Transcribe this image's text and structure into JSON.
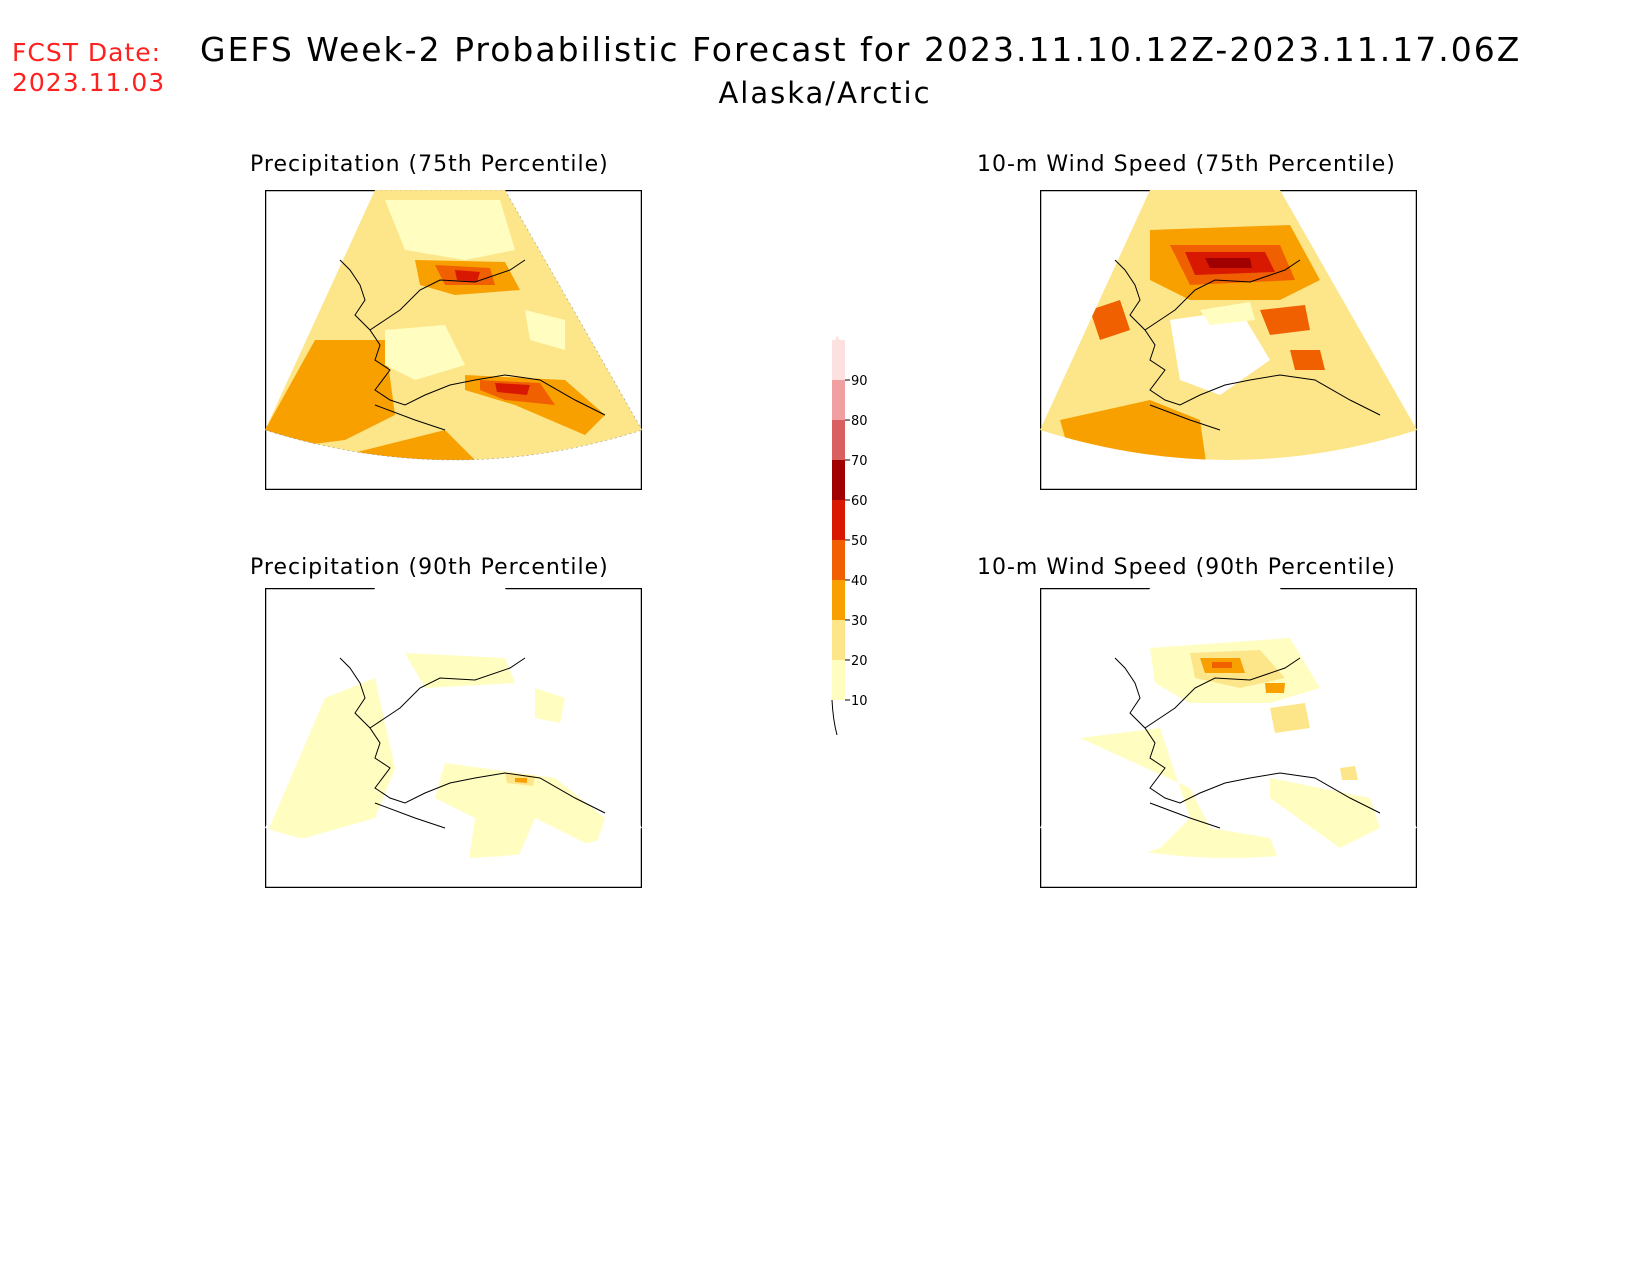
{
  "header": {
    "fcst_label": "FCST Date:",
    "fcst_date": "2023.11.03",
    "title": "GEFS Week-2 Probabilistic Forecast for 2023.11.10.12Z-2023.11.17.06Z",
    "region": "Alaska/Arctic"
  },
  "panels": [
    {
      "title": "Precipitation (75th Percentile)",
      "id": "precip75"
    },
    {
      "title": "10-m Wind Speed (75th Percentile)",
      "id": "wind75"
    },
    {
      "title": "Precipitation (90th Percentile)",
      "id": "precip90"
    },
    {
      "title": "10-m Wind Speed (90th Percentile)",
      "id": "wind90"
    }
  ],
  "colorbar": {
    "levels": [
      "10",
      "20",
      "30",
      "40",
      "50",
      "60",
      "70",
      "80",
      "90"
    ],
    "colors": [
      "#fffdc0",
      "#fde68a",
      "#f8a000",
      "#f06000",
      "#d81800",
      "#a00000",
      "#d86060",
      "#f0a0a0",
      "#fde0e0"
    ]
  }
}
